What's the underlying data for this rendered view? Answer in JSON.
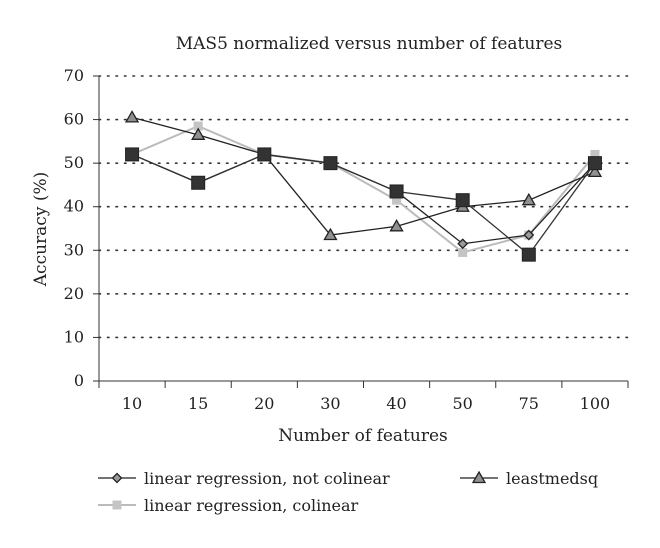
{
  "chart_data": {
    "type": "line",
    "title": "MAS5 normalized versus number of features",
    "xlabel": "Number of features",
    "ylabel": "Accuracy (%)",
    "categories": [
      "10",
      "15",
      "20",
      "30",
      "40",
      "50",
      "75",
      "100"
    ],
    "ylim": [
      0,
      70
    ],
    "yticks": [
      0,
      10,
      20,
      30,
      40,
      50,
      60,
      70
    ],
    "grid": "horizontal dotted",
    "legend_position": "bottom",
    "series": [
      {
        "name": "linear regression, not colinear",
        "marker": "diamond",
        "color": "#222222",
        "values": [
          52,
          45.5,
          52,
          50,
          43.5,
          31.5,
          33.5,
          50
        ]
      },
      {
        "name": "linear regression, colinear",
        "marker": "square",
        "color": "#bbbbbb",
        "values": [
          52,
          58.5,
          52,
          50,
          41.5,
          29.5,
          33.5,
          52
        ]
      },
      {
        "name": "leastmedsq",
        "marker": "triangle",
        "color": "#222222",
        "values": [
          60.5,
          56.5,
          52,
          33.5,
          35.5,
          40,
          41.5,
          48
        ]
      },
      {
        "name": "",
        "marker": "big-square",
        "color": "#333333",
        "values": [
          52,
          45.5,
          52,
          50,
          43.5,
          41.5,
          29,
          50
        ]
      }
    ]
  }
}
